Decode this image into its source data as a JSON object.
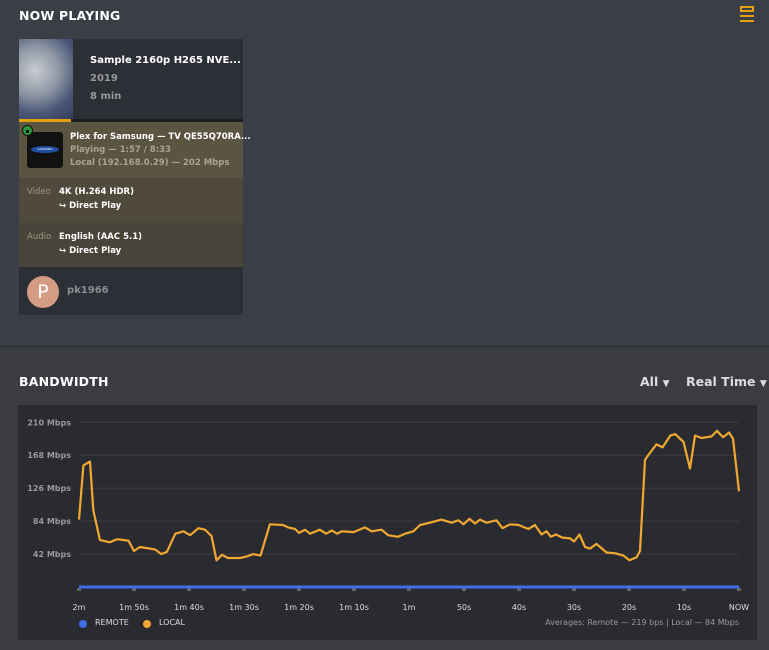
{
  "now_playing": {
    "title": "NOW PLAYING",
    "menu_icon": "server-list-icon",
    "media": {
      "title": "Sample 2160p H265 NVE...",
      "year": "2019",
      "duration": "8 min",
      "progress_percent": 23
    },
    "player": {
      "name": "Plex for Samsung  —  TV QE55Q70RA...",
      "state": "Playing — 1:57 / 8:33",
      "network": "Local (192.168.0.29) — 202 Mbps",
      "logo_text": "SAMSUNG",
      "secure_icon": "lock-icon"
    },
    "video": {
      "label": "Video",
      "value": "4K (H.264 HDR)",
      "decision": "↪  Direct Play"
    },
    "audio": {
      "label": "Audio",
      "value": "English (AAC 5.1)",
      "decision": "↪  Direct Play"
    },
    "user": {
      "initial": "P",
      "name": "pk1966"
    }
  },
  "bandwidth": {
    "title": "BANDWIDTH",
    "filter": "All",
    "timespan": "Real Time",
    "averages": "Averages: Remote — 219 bps | Local — 84 Mbps"
  },
  "colors": {
    "accent": "#e5a00d",
    "remote": "#3d6ee8",
    "local": "#f0a830"
  },
  "chart_data": {
    "type": "line",
    "ylim": [
      0,
      210
    ],
    "yticks": [
      "42 Mbps",
      "84 Mbps",
      "126 Mbps",
      "168 Mbps",
      "210 Mbps"
    ],
    "ytick_values": [
      42,
      84,
      126,
      168,
      210
    ],
    "xticks": [
      "2m",
      "1m 50s",
      "1m 40s",
      "1m 30s",
      "1m 20s",
      "1m 10s",
      "1m",
      "50s",
      "40s",
      "30s",
      "20s",
      "10s",
      "NOW"
    ],
    "xlim_seconds_ago": [
      120,
      0
    ],
    "grid": true,
    "legend": "bottom-left",
    "series": [
      {
        "name": "REMOTE",
        "x_seconds_ago": [
          120,
          0
        ],
        "values_mbps": [
          0,
          0
        ]
      },
      {
        "name": "LOCAL",
        "x_seconds_ago": [
          120,
          119.2,
          118,
          117.4,
          116.2,
          114.4,
          113.1,
          111,
          110,
          108.9,
          106.2,
          105,
          104,
          102.5,
          101,
          99.8,
          98.3,
          97.1,
          95.9,
          95,
          94,
          92.9,
          90.7,
          89.5,
          88.3,
          87,
          85.3,
          82.9,
          82,
          80.7,
          80,
          78.9,
          78,
          76.2,
          75.1,
          74,
          73.1,
          72.2,
          70.1,
          68,
          66.8,
          65,
          63.8,
          62,
          60.7,
          59.2,
          58,
          56.2,
          54.1,
          52.3,
          51,
          50.1,
          49,
          48,
          47.1,
          45.9,
          44.1,
          43,
          41.6,
          40.1,
          38.3,
          37.1,
          35.9,
          35,
          34.2,
          33.3,
          32.1,
          30.7,
          30,
          29,
          28,
          27.1,
          25.9,
          24.1,
          22.5,
          21,
          19.9,
          18.6,
          18,
          17.1,
          16.2,
          15,
          13.9,
          12.5,
          11.6,
          10.1,
          8.9,
          8,
          6.8,
          5,
          4,
          2.9,
          1.8,
          1.1,
          0
        ],
        "values_mbps": [
          86,
          155,
          160,
          98,
          60,
          57,
          61,
          59,
          46,
          51,
          48,
          42,
          45,
          68,
          71,
          66,
          75,
          73,
          65,
          34,
          41,
          37,
          37,
          39,
          42,
          40,
          80,
          79,
          76,
          74,
          69,
          73,
          68,
          73,
          68,
          72,
          68,
          71,
          70,
          76,
          71,
          73,
          66,
          64,
          68,
          71,
          79,
          82,
          86,
          82,
          85,
          80,
          87,
          81,
          86,
          82,
          85,
          75,
          80,
          79,
          74,
          79,
          67,
          71,
          64,
          67,
          63,
          62,
          58,
          67,
          51,
          49,
          55,
          44,
          43,
          40,
          34,
          38,
          46,
          162,
          171,
          182,
          178,
          193,
          195,
          185,
          151,
          193,
          190,
          192,
          199,
          191,
          197,
          189,
          122
        ]
      }
    ]
  }
}
